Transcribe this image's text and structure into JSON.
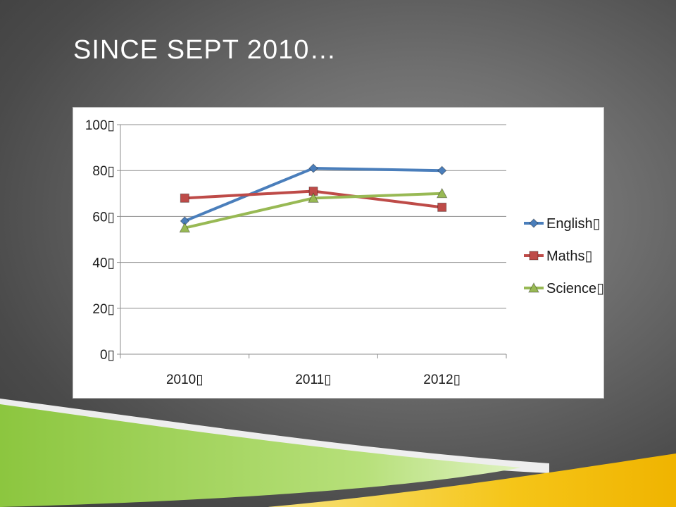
{
  "slide": {
    "title": "SINCE SEPT 2010…"
  },
  "chart_data": {
    "type": "line",
    "categories": [
      "2010",
      "2011",
      "2012"
    ],
    "category_labels": [
      "2010▯",
      "2011▯",
      "2012▯"
    ],
    "series": [
      {
        "name": "English",
        "legend_label": "English▯",
        "values": [
          58,
          81,
          80
        ],
        "color": "#4a7ebb",
        "marker": "diamond"
      },
      {
        "name": "Maths",
        "legend_label": "Maths▯",
        "values": [
          68,
          71,
          64
        ],
        "color": "#be4b48",
        "marker": "square"
      },
      {
        "name": "Science",
        "legend_label": "Science▯",
        "values": [
          55,
          68,
          70
        ],
        "color": "#98b954",
        "marker": "triangle"
      }
    ],
    "ylim": [
      0,
      100
    ],
    "yticks": [
      0,
      20,
      40,
      60,
      80,
      100
    ],
    "ytick_labels": [
      "0▯",
      "20▯",
      "40▯",
      "60▯",
      "80▯",
      "100▯"
    ],
    "grid": true,
    "legend_position": "right",
    "title": "",
    "xlabel": "",
    "ylabel": ""
  },
  "theme": {
    "accent_green": "#8cc63f",
    "accent_yellow": "#f5c518"
  }
}
